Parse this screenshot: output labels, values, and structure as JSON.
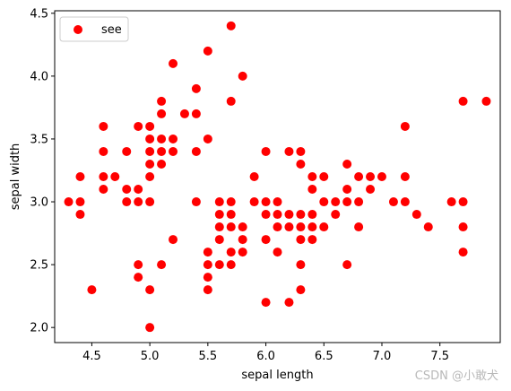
{
  "chart_data": {
    "type": "scatter",
    "xlabel": "sepal length",
    "ylabel": "sepal width",
    "xlim": [
      4.18,
      8.02
    ],
    "ylim": [
      1.88,
      4.52
    ],
    "xticks": [
      "4.5",
      "5.0",
      "5.5",
      "6.0",
      "6.5",
      "7.0",
      "7.5"
    ],
    "yticks": [
      "2.0",
      "2.5",
      "3.0",
      "3.5",
      "4.0",
      "4.5"
    ],
    "grid": false,
    "legend_position": "top-left",
    "series": [
      {
        "name": "see",
        "color": "#ff0000",
        "points": [
          [
            4.3,
            3.0
          ],
          [
            4.4,
            3.0
          ],
          [
            4.4,
            3.2
          ],
          [
            4.4,
            2.9
          ],
          [
            4.5,
            2.3
          ],
          [
            4.6,
            3.6
          ],
          [
            4.6,
            3.4
          ],
          [
            4.6,
            3.2
          ],
          [
            4.6,
            3.1
          ],
          [
            4.7,
            3.2
          ],
          [
            4.8,
            3.4
          ],
          [
            4.8,
            3.1
          ],
          [
            4.8,
            3.0
          ],
          [
            4.9,
            3.6
          ],
          [
            4.9,
            3.1
          ],
          [
            4.9,
            3.0
          ],
          [
            4.9,
            2.5
          ],
          [
            4.9,
            2.4
          ],
          [
            5.0,
            3.6
          ],
          [
            5.0,
            3.5
          ],
          [
            5.0,
            3.4
          ],
          [
            5.0,
            3.3
          ],
          [
            5.0,
            3.2
          ],
          [
            5.0,
            3.0
          ],
          [
            5.0,
            2.3
          ],
          [
            5.0,
            2.0
          ],
          [
            5.1,
            3.8
          ],
          [
            5.1,
            3.7
          ],
          [
            5.1,
            3.5
          ],
          [
            5.1,
            3.4
          ],
          [
            5.1,
            3.3
          ],
          [
            5.1,
            2.5
          ],
          [
            5.2,
            4.1
          ],
          [
            5.2,
            3.5
          ],
          [
            5.2,
            3.4
          ],
          [
            5.2,
            2.7
          ],
          [
            5.3,
            3.7
          ],
          [
            5.4,
            3.9
          ],
          [
            5.4,
            3.7
          ],
          [
            5.4,
            3.4
          ],
          [
            5.4,
            3.0
          ],
          [
            5.5,
            4.2
          ],
          [
            5.5,
            3.5
          ],
          [
            5.5,
            2.6
          ],
          [
            5.5,
            2.5
          ],
          [
            5.5,
            2.4
          ],
          [
            5.5,
            2.3
          ],
          [
            5.6,
            3.0
          ],
          [
            5.6,
            2.9
          ],
          [
            5.6,
            2.8
          ],
          [
            5.6,
            2.7
          ],
          [
            5.6,
            2.5
          ],
          [
            5.7,
            4.4
          ],
          [
            5.7,
            3.8
          ],
          [
            5.7,
            3.0
          ],
          [
            5.7,
            2.9
          ],
          [
            5.7,
            2.8
          ],
          [
            5.7,
            2.6
          ],
          [
            5.7,
            2.5
          ],
          [
            5.8,
            4.0
          ],
          [
            5.8,
            2.8
          ],
          [
            5.8,
            2.7
          ],
          [
            5.8,
            2.6
          ],
          [
            5.9,
            3.2
          ],
          [
            5.9,
            3.0
          ],
          [
            6.0,
            3.4
          ],
          [
            6.0,
            3.0
          ],
          [
            6.0,
            2.9
          ],
          [
            6.0,
            2.7
          ],
          [
            6.0,
            2.2
          ],
          [
            6.1,
            3.0
          ],
          [
            6.1,
            2.9
          ],
          [
            6.1,
            2.8
          ],
          [
            6.1,
            2.6
          ],
          [
            6.2,
            3.4
          ],
          [
            6.2,
            2.9
          ],
          [
            6.2,
            2.8
          ],
          [
            6.2,
            2.2
          ],
          [
            6.3,
            3.4
          ],
          [
            6.3,
            3.3
          ],
          [
            6.3,
            2.9
          ],
          [
            6.3,
            2.8
          ],
          [
            6.3,
            2.7
          ],
          [
            6.3,
            2.5
          ],
          [
            6.3,
            2.3
          ],
          [
            6.4,
            3.2
          ],
          [
            6.4,
            3.1
          ],
          [
            6.4,
            2.9
          ],
          [
            6.4,
            2.8
          ],
          [
            6.4,
            2.7
          ],
          [
            6.5,
            3.2
          ],
          [
            6.5,
            3.0
          ],
          [
            6.5,
            2.8
          ],
          [
            6.6,
            3.0
          ],
          [
            6.6,
            2.9
          ],
          [
            6.7,
            3.3
          ],
          [
            6.7,
            3.1
          ],
          [
            6.7,
            3.0
          ],
          [
            6.7,
            2.5
          ],
          [
            6.8,
            3.2
          ],
          [
            6.8,
            3.0
          ],
          [
            6.8,
            2.8
          ],
          [
            6.9,
            3.2
          ],
          [
            6.9,
            3.1
          ],
          [
            7.0,
            3.2
          ],
          [
            7.1,
            3.0
          ],
          [
            7.2,
            3.6
          ],
          [
            7.2,
            3.2
          ],
          [
            7.2,
            3.0
          ],
          [
            7.3,
            2.9
          ],
          [
            7.4,
            2.8
          ],
          [
            7.6,
            3.0
          ],
          [
            7.7,
            3.8
          ],
          [
            7.7,
            3.0
          ],
          [
            7.7,
            2.8
          ],
          [
            7.7,
            2.6
          ],
          [
            7.9,
            3.8
          ]
        ]
      }
    ]
  },
  "watermark": "CSDN @小敢犬"
}
